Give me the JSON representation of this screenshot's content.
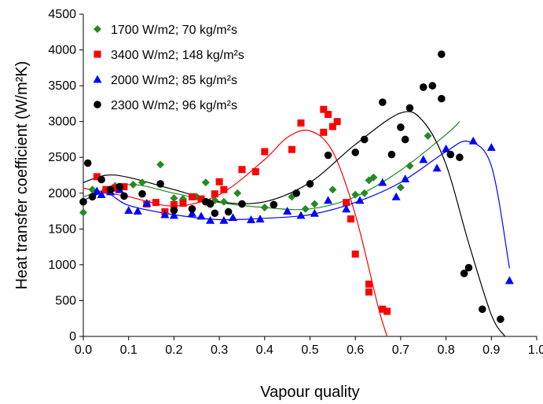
{
  "chart_data": {
    "type": "scatter",
    "xlabel": "Vapour quality",
    "ylabel": "Heat transfer coefficient (W/m²K)",
    "xlim": [
      0,
      1.0
    ],
    "ylim": [
      0,
      4500
    ],
    "x_ticks": [
      "0.0",
      "0.1",
      "0.2",
      "0.3",
      "0.4",
      "0.5",
      "0.6",
      "0.7",
      "0.8",
      "0.9",
      "1.0"
    ],
    "y_ticks": [
      "0",
      "500",
      "1000",
      "1500",
      "2000",
      "2500",
      "3000",
      "3500",
      "4000",
      "4500"
    ],
    "grid": false,
    "legend_position": "top-left",
    "series": [
      {
        "name": "1700 W/m2; 70 kg/m²s",
        "marker": "diamond",
        "color": "#228B22",
        "points": [
          [
            0.0,
            1730
          ],
          [
            0.02,
            2050
          ],
          [
            0.05,
            2050
          ],
          [
            0.07,
            2100
          ],
          [
            0.11,
            2120
          ],
          [
            0.13,
            2150
          ],
          [
            0.17,
            2400
          ],
          [
            0.2,
            1930
          ],
          [
            0.22,
            1920
          ],
          [
            0.25,
            1950
          ],
          [
            0.27,
            2150
          ],
          [
            0.29,
            1900
          ],
          [
            0.31,
            1880
          ],
          [
            0.34,
            2000
          ],
          [
            0.4,
            1800
          ],
          [
            0.46,
            1950
          ],
          [
            0.49,
            1780
          ],
          [
            0.51,
            1850
          ],
          [
            0.55,
            2050
          ],
          [
            0.58,
            1850
          ],
          [
            0.6,
            1980
          ],
          [
            0.62,
            2000
          ],
          [
            0.63,
            2180
          ],
          [
            0.64,
            2220
          ],
          [
            0.7,
            2080
          ],
          [
            0.72,
            2380
          ],
          [
            0.76,
            2800
          ]
        ],
        "fit": [
          [
            0.0,
            1950
          ],
          [
            0.1,
            2120
          ],
          [
            0.2,
            2000
          ],
          [
            0.3,
            1870
          ],
          [
            0.4,
            1800
          ],
          [
            0.5,
            1780
          ],
          [
            0.6,
            1950
          ],
          [
            0.7,
            2320
          ],
          [
            0.8,
            2820
          ],
          [
            0.83,
            3000
          ]
        ]
      },
      {
        "name": "3400 W/m2; 148 kg/m²s",
        "marker": "square",
        "color": "#FF0000",
        "points": [
          [
            0.03,
            2230
          ],
          [
            0.05,
            2050
          ],
          [
            0.07,
            2070
          ],
          [
            0.09,
            2090
          ],
          [
            0.14,
            1850
          ],
          [
            0.16,
            1870
          ],
          [
            0.18,
            1740
          ],
          [
            0.2,
            1840
          ],
          [
            0.22,
            1860
          ],
          [
            0.24,
            1950
          ],
          [
            0.26,
            1920
          ],
          [
            0.29,
            1990
          ],
          [
            0.3,
            2160
          ],
          [
            0.31,
            2050
          ],
          [
            0.35,
            2330
          ],
          [
            0.38,
            2300
          ],
          [
            0.4,
            2580
          ],
          [
            0.46,
            2610
          ],
          [
            0.48,
            2980
          ],
          [
            0.53,
            3170
          ],
          [
            0.53,
            2850
          ],
          [
            0.54,
            3100
          ],
          [
            0.55,
            2930
          ],
          [
            0.56,
            3000
          ],
          [
            0.58,
            1870
          ],
          [
            0.59,
            1640
          ],
          [
            0.6,
            1150
          ],
          [
            0.63,
            730
          ],
          [
            0.63,
            620
          ],
          [
            0.66,
            380
          ],
          [
            0.67,
            350
          ]
        ],
        "fit": [
          [
            0.0,
            2070
          ],
          [
            0.1,
            1950
          ],
          [
            0.2,
            1820
          ],
          [
            0.3,
            1980
          ],
          [
            0.4,
            2470
          ],
          [
            0.45,
            2780
          ],
          [
            0.5,
            2870
          ],
          [
            0.55,
            2580
          ],
          [
            0.6,
            1700
          ],
          [
            0.65,
            420
          ],
          [
            0.67,
            0
          ]
        ]
      },
      {
        "name": "2000 W/m2; 85 kg/m²s",
        "marker": "triangle",
        "color": "#0000FF",
        "points": [
          [
            0.03,
            2030
          ],
          [
            0.04,
            1980
          ],
          [
            0.06,
            2020
          ],
          [
            0.08,
            2050
          ],
          [
            0.1,
            1760
          ],
          [
            0.12,
            1750
          ],
          [
            0.14,
            1860
          ],
          [
            0.18,
            1700
          ],
          [
            0.2,
            1690
          ],
          [
            0.24,
            1720
          ],
          [
            0.26,
            1680
          ],
          [
            0.28,
            1620
          ],
          [
            0.31,
            1620
          ],
          [
            0.33,
            1660
          ],
          [
            0.37,
            1630
          ],
          [
            0.39,
            1640
          ],
          [
            0.45,
            1750
          ],
          [
            0.48,
            1690
          ],
          [
            0.51,
            1720
          ],
          [
            0.54,
            1900
          ],
          [
            0.58,
            1780
          ],
          [
            0.61,
            1900
          ],
          [
            0.66,
            2150
          ],
          [
            0.69,
            1950
          ],
          [
            0.71,
            2200
          ],
          [
            0.75,
            2470
          ],
          [
            0.78,
            2350
          ],
          [
            0.8,
            2620
          ],
          [
            0.86,
            2730
          ],
          [
            0.9,
            2640
          ],
          [
            0.94,
            780
          ]
        ],
        "fit": [
          [
            0.0,
            1900
          ],
          [
            0.05,
            2000
          ],
          [
            0.1,
            1830
          ],
          [
            0.2,
            1700
          ],
          [
            0.3,
            1630
          ],
          [
            0.4,
            1650
          ],
          [
            0.5,
            1700
          ],
          [
            0.6,
            1870
          ],
          [
            0.7,
            2150
          ],
          [
            0.8,
            2580
          ],
          [
            0.85,
            2720
          ],
          [
            0.9,
            2380
          ],
          [
            0.94,
            950
          ]
        ]
      },
      {
        "name": "2300 W/m2; 96 kg/m²s",
        "marker": "circle",
        "color": "#000000",
        "points": [
          [
            0.0,
            1880
          ],
          [
            0.01,
            2420
          ],
          [
            0.02,
            1950
          ],
          [
            0.04,
            2190
          ],
          [
            0.06,
            2050
          ],
          [
            0.08,
            2090
          ],
          [
            0.09,
            1960
          ],
          [
            0.13,
            1990
          ],
          [
            0.17,
            2130
          ],
          [
            0.2,
            1760
          ],
          [
            0.24,
            1780
          ],
          [
            0.27,
            1880
          ],
          [
            0.28,
            1850
          ],
          [
            0.29,
            1720
          ],
          [
            0.32,
            1740
          ],
          [
            0.35,
            1850
          ],
          [
            0.42,
            1840
          ],
          [
            0.47,
            2000
          ],
          [
            0.5,
            2130
          ],
          [
            0.54,
            2530
          ],
          [
            0.6,
            2570
          ],
          [
            0.62,
            2750
          ],
          [
            0.66,
            3270
          ],
          [
            0.68,
            2540
          ],
          [
            0.7,
            2920
          ],
          [
            0.71,
            2750
          ],
          [
            0.72,
            3190
          ],
          [
            0.75,
            3480
          ],
          [
            0.77,
            3500
          ],
          [
            0.79,
            3940
          ],
          [
            0.79,
            3320
          ],
          [
            0.81,
            2540
          ],
          [
            0.83,
            2500
          ],
          [
            0.84,
            880
          ],
          [
            0.85,
            960
          ],
          [
            0.88,
            380
          ],
          [
            0.92,
            240
          ]
        ],
        "fit": [
          [
            0.0,
            2150
          ],
          [
            0.05,
            2250
          ],
          [
            0.1,
            2220
          ],
          [
            0.2,
            2050
          ],
          [
            0.3,
            1880
          ],
          [
            0.4,
            1880
          ],
          [
            0.5,
            2150
          ],
          [
            0.6,
            2680
          ],
          [
            0.7,
            3120
          ],
          [
            0.75,
            3000
          ],
          [
            0.8,
            2400
          ],
          [
            0.85,
            1300
          ],
          [
            0.9,
            300
          ],
          [
            0.93,
            0
          ]
        ]
      }
    ]
  }
}
